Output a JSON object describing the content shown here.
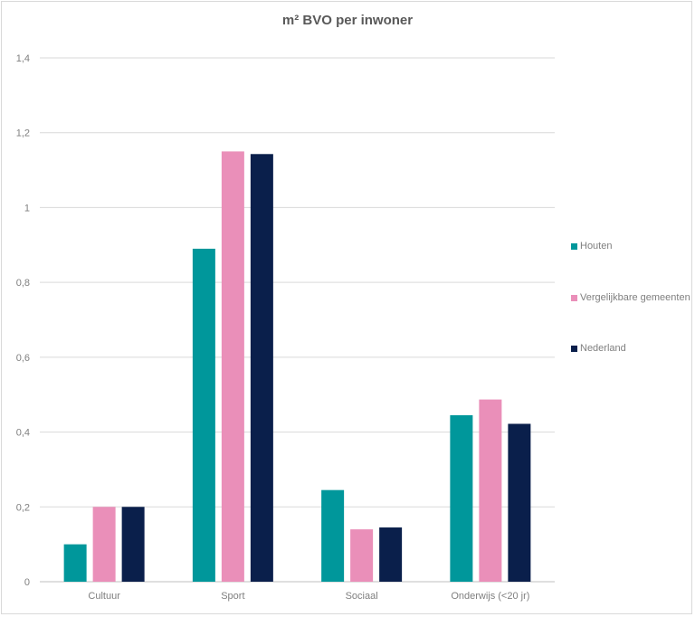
{
  "chart_data": {
    "type": "bar",
    "title": "m² BVO per inwoner",
    "categories": [
      "Cultuur",
      "Sport",
      "Sociaal",
      "Onderwijs (<20 jr)"
    ],
    "series": [
      {
        "name": "Houten",
        "color": "#00979b",
        "values": [
          0.1,
          0.89,
          0.245,
          0.445
        ]
      },
      {
        "name": "Vergelijkbare gemeenten",
        "color": "#ea8fb9",
        "values": [
          0.2,
          1.15,
          0.14,
          0.487
        ]
      },
      {
        "name": "Nederland",
        "color": "#0a1f4b",
        "values": [
          0.2,
          1.143,
          0.145,
          0.422
        ]
      }
    ],
    "yticks": [
      "0",
      "0,2",
      "0,4",
      "0,6",
      "0,8",
      "1",
      "1,2",
      "1,4"
    ],
    "ylim": [
      0,
      1.4
    ],
    "grid": true,
    "legend_position": "right"
  }
}
